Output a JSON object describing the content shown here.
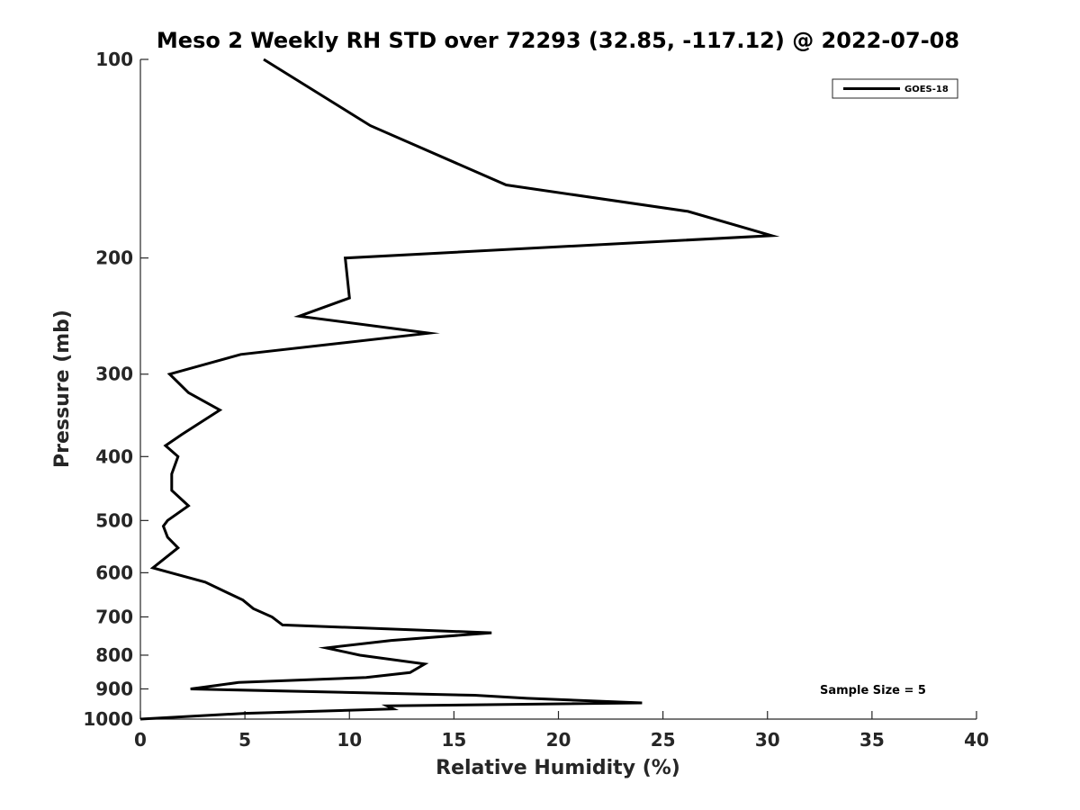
{
  "chart_data": {
    "type": "line",
    "title": "Meso 2 Weekly RH STD over 72293 (32.85, -117.12) @ 2022-07-08",
    "xlabel": "Relative Humidity (%)",
    "ylabel": "Pressure (mb)",
    "xlim": [
      0,
      40
    ],
    "ylim": [
      100,
      1000
    ],
    "yscale": "log",
    "yreversed": true,
    "x_ticks": [
      0,
      5,
      10,
      15,
      20,
      25,
      30,
      35,
      40
    ],
    "y_ticks": [
      100,
      200,
      300,
      400,
      500,
      600,
      700,
      800,
      900,
      1000
    ],
    "legend_location": "top-right",
    "annotation": "Sample Size = 5",
    "series": [
      {
        "name": "GOES-18",
        "color": "#000000",
        "x": [
          5.9,
          11.0,
          17.5,
          26.2,
          30.2,
          9.8,
          10.0,
          7.6,
          13.8,
          4.8,
          1.4,
          2.3,
          3.8,
          2.0,
          1.2,
          1.8,
          1.5,
          1.5,
          2.3,
          1.3,
          1.1,
          1.3,
          1.8,
          0.6,
          3.1,
          4.9,
          5.4,
          6.3,
          6.8,
          16.8,
          12.0,
          8.9,
          10.5,
          13.6,
          12.9,
          10.8,
          4.7,
          2.4,
          16.0,
          18.5,
          24.0,
          11.8,
          12.1,
          5.0,
          0.0
        ],
        "y": [
          100,
          126,
          155,
          170,
          185,
          200,
          230,
          245,
          260,
          280,
          300,
          320,
          340,
          370,
          385,
          400,
          425,
          450,
          475,
          500,
          510,
          530,
          550,
          590,
          620,
          660,
          680,
          700,
          720,
          740,
          760,
          780,
          800,
          825,
          850,
          865,
          880,
          900,
          920,
          930,
          945,
          955,
          965,
          980,
          1000
        ]
      }
    ]
  }
}
